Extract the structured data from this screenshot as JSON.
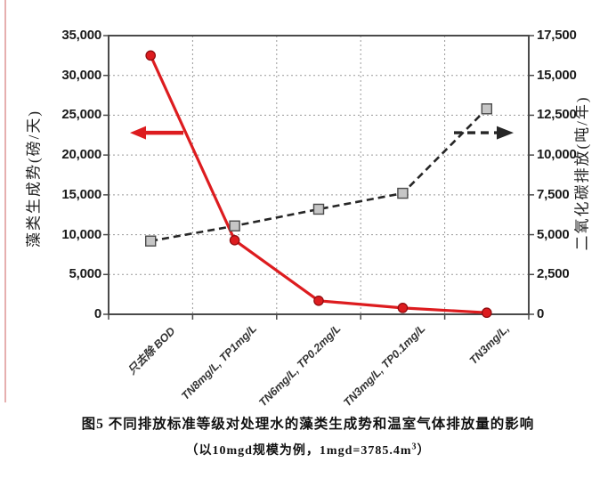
{
  "figure": {
    "caption_line1": "图5 不同排放标准等级对处理水的藻类生成势和温室气体排放量的影响",
    "caption_line2_prefix": "（以10mgd规模为例，1mgd=3785.4m",
    "caption_line2_sup": "3",
    "caption_line2_suffix": "）"
  },
  "chart_data": {
    "type": "line",
    "grid": {
      "horizontal": true,
      "vertical": true,
      "style": "dotted"
    },
    "legend": "none",
    "categories": [
      "只去除 BOD",
      "TN8mg/L, TP1mg/L",
      "TN6mg/L, TP0.2mg/L",
      "TN3mg/L, TP0.1mg/L",
      "TN3mg/L,"
    ],
    "left_axis": {
      "label": "藻类生成势(磅/天)",
      "range": [
        0,
        35000
      ],
      "tick_step": 5000,
      "tick_labels": [
        "0",
        "5,000",
        "10,000",
        "15,000",
        "20,000",
        "25,000",
        "30,000",
        "35,000"
      ]
    },
    "right_axis": {
      "label": "二氧化碳排放(吨/年)",
      "range": [
        0,
        17500
      ],
      "tick_step": 2500,
      "tick_labels": [
        "0",
        "2,500",
        "5,000",
        "7,500",
        "10,000",
        "12,500",
        "15,000",
        "17,500"
      ]
    },
    "series": [
      {
        "name": "藻类生成势(磅/天)",
        "axis": "left",
        "line_style": "solid",
        "marker": "circle",
        "color": "#dd1c1f",
        "marker_fill": "#dd1c1f",
        "marker_edge": "#8e0b0e",
        "values": [
          32500,
          9300,
          1700,
          800,
          200
        ]
      },
      {
        "name": "二氧化碳排放(吨/年)",
        "axis": "right",
        "line_style": "dashed",
        "marker": "square",
        "color": "#262626",
        "marker_fill": "#c6c6c6",
        "marker_edge": "#4a4a4a",
        "values": [
          4600,
          5550,
          6600,
          7600,
          12900
        ]
      }
    ],
    "annotations": [
      {
        "kind": "arrow",
        "points_to": "left-axis",
        "direction": "left",
        "color": "#dd1c1f",
        "line_style": "solid",
        "at_left_value": 22800
      },
      {
        "kind": "arrow",
        "points_to": "right-axis",
        "direction": "right",
        "color": "#262626",
        "line_style": "dashed",
        "at_right_value": 11400
      }
    ]
  }
}
